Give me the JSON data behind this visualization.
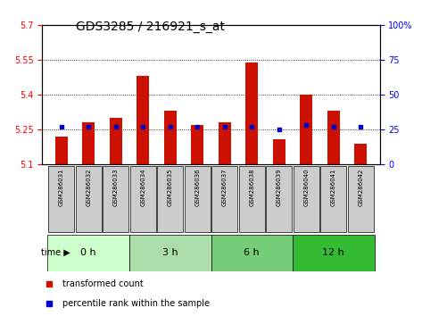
{
  "title": "GDS3285 / 216921_s_at",
  "samples": [
    "GSM286031",
    "GSM286032",
    "GSM286033",
    "GSM286034",
    "GSM286035",
    "GSM286036",
    "GSM286037",
    "GSM286038",
    "GSM286039",
    "GSM286040",
    "GSM286041",
    "GSM286042"
  ],
  "transformed_count": [
    5.22,
    5.28,
    5.3,
    5.48,
    5.33,
    5.27,
    5.28,
    5.54,
    5.21,
    5.4,
    5.33,
    5.19
  ],
  "percentile_rank": [
    27,
    27,
    27,
    27,
    27,
    27,
    27,
    27,
    25,
    28,
    27,
    27
  ],
  "groups": [
    {
      "label": "0 h",
      "start": 0,
      "end": 3,
      "color": "#ccffcc"
    },
    {
      "label": "3 h",
      "start": 3,
      "end": 6,
      "color": "#aaddaa"
    },
    {
      "label": "6 h",
      "start": 6,
      "end": 9,
      "color": "#77cc77"
    },
    {
      "label": "12 h",
      "start": 9,
      "end": 12,
      "color": "#33bb33"
    }
  ],
  "ylim_left": [
    5.1,
    5.7
  ],
  "yticks_left": [
    5.1,
    5.25,
    5.4,
    5.55,
    5.7
  ],
  "ylim_right": [
    0,
    100
  ],
  "yticks_right": [
    0,
    25,
    50,
    75,
    100
  ],
  "bar_color": "#cc1100",
  "marker_color": "#0000cc",
  "bar_bottom": 5.1,
  "bar_width": 0.45,
  "grid_color": "#000000",
  "sample_box_color": "#cccccc",
  "title_fontsize": 10,
  "axis_fontsize": 7,
  "sample_fontsize": 5,
  "group_fontsize": 8,
  "legend_fontsize": 7
}
